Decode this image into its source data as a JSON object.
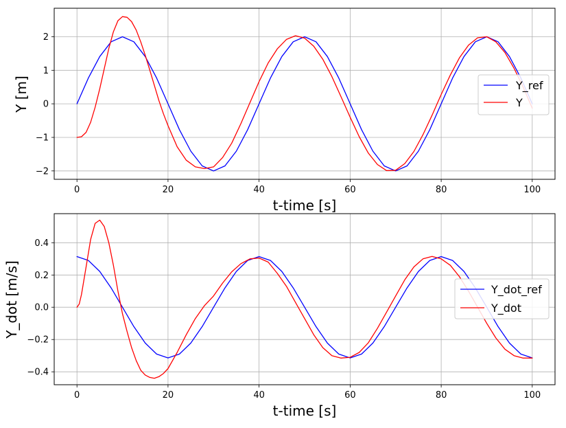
{
  "chart_data": [
    {
      "type": "line",
      "xlabel": "t-time [s]",
      "ylabel": "Y [m]",
      "xlim": [
        -5,
        105
      ],
      "ylim": [
        -2.25,
        2.85
      ],
      "xticks": [
        0,
        20,
        40,
        60,
        80,
        100
      ],
      "yticks": [
        -2,
        -1,
        0,
        1,
        2
      ],
      "grid": true,
      "legend_position": "center-right",
      "series": [
        {
          "name": "Y_ref",
          "color": "#0000ff",
          "x": [
            0,
            2.5,
            5,
            7.5,
            10,
            12.5,
            15,
            17.5,
            20,
            22.5,
            25,
            27.5,
            30,
            32.5,
            35,
            37.5,
            40,
            42.5,
            45,
            47.5,
            50,
            52.5,
            55,
            57.5,
            60,
            62.5,
            65,
            67.5,
            70,
            72.5,
            75,
            77.5,
            80,
            82.5,
            85,
            87.5,
            90,
            92.5,
            95,
            97.5,
            100
          ],
          "values": [
            0,
            0.77,
            1.41,
            1.85,
            2.0,
            1.85,
            1.41,
            0.77,
            0,
            -0.77,
            -1.41,
            -1.85,
            -2.0,
            -1.85,
            -1.41,
            -0.77,
            0,
            0.77,
            1.41,
            1.85,
            2.0,
            1.85,
            1.41,
            0.77,
            0,
            -0.77,
            -1.41,
            -1.85,
            -2.0,
            -1.85,
            -1.41,
            -0.77,
            0,
            0.77,
            1.41,
            1.85,
            2.0,
            1.85,
            1.41,
            0.77,
            0
          ]
        },
        {
          "name": "Y",
          "color": "#ff0000",
          "x": [
            0,
            1,
            2,
            3,
            4,
            5,
            6,
            7,
            8,
            9,
            10,
            11,
            12,
            13,
            14,
            15,
            16,
            17,
            18,
            19,
            20,
            22,
            24,
            26,
            28,
            30,
            32,
            34,
            36,
            38,
            40,
            42,
            44,
            46,
            48,
            50,
            52,
            54,
            56,
            58,
            60,
            62,
            64,
            66,
            68,
            70,
            72,
            74,
            76,
            78,
            80,
            82,
            84,
            86,
            88,
            90,
            92,
            94,
            96,
            98,
            100
          ],
          "values": [
            -1.0,
            -0.98,
            -0.85,
            -0.55,
            -0.1,
            0.45,
            1.05,
            1.65,
            2.15,
            2.48,
            2.6,
            2.58,
            2.45,
            2.2,
            1.85,
            1.45,
            1.0,
            0.55,
            0.1,
            -0.3,
            -0.65,
            -1.28,
            -1.68,
            -1.88,
            -1.93,
            -1.88,
            -1.6,
            -1.17,
            -0.59,
            0.04,
            0.66,
            1.22,
            1.64,
            1.92,
            2.03,
            1.96,
            1.72,
            1.33,
            0.81,
            0.21,
            -0.4,
            -0.98,
            -1.47,
            -1.81,
            -1.99,
            -1.98,
            -1.78,
            -1.42,
            -0.92,
            -0.34,
            0.28,
            0.86,
            1.37,
            1.75,
            1.97,
            2.0,
            1.85,
            1.53,
            1.06,
            0.5,
            -0.13
          ]
        }
      ]
    },
    {
      "type": "line",
      "xlabel": "t-time [s]",
      "ylabel": "Y_dot [m/s]",
      "xlim": [
        -5,
        105
      ],
      "ylim": [
        -0.48,
        0.58
      ],
      "xticks": [
        0,
        20,
        40,
        60,
        80,
        100
      ],
      "yticks": [
        -0.4,
        -0.2,
        0.0,
        0.2,
        0.4
      ],
      "ytick_labels": [
        "−0.4",
        "−0.2",
        "0.0",
        "0.2",
        "0.4"
      ],
      "grid": true,
      "legend_position": "center-right",
      "series": [
        {
          "name": "Y_dot_ref",
          "color": "#0000ff",
          "x": [
            0,
            2.5,
            5,
            7.5,
            10,
            12.5,
            15,
            17.5,
            20,
            22.5,
            25,
            27.5,
            30,
            32.5,
            35,
            37.5,
            40,
            42.5,
            45,
            47.5,
            50,
            52.5,
            55,
            57.5,
            60,
            62.5,
            65,
            67.5,
            70,
            72.5,
            75,
            77.5,
            80,
            82.5,
            85,
            87.5,
            90,
            92.5,
            95,
            97.5,
            100
          ],
          "values": [
            0.314,
            0.29,
            0.222,
            0.12,
            0,
            -0.12,
            -0.222,
            -0.29,
            -0.314,
            -0.29,
            -0.222,
            -0.12,
            0,
            0.12,
            0.222,
            0.29,
            0.314,
            0.29,
            0.222,
            0.12,
            0,
            -0.12,
            -0.222,
            -0.29,
            -0.314,
            -0.29,
            -0.222,
            -0.12,
            0,
            0.12,
            0.222,
            0.29,
            0.314,
            0.29,
            0.222,
            0.12,
            0,
            -0.12,
            -0.222,
            -0.29,
            -0.314
          ]
        },
        {
          "name": "Y_dot",
          "color": "#ff0000",
          "x": [
            0,
            0.5,
            1,
            2,
            3,
            4,
            5,
            6,
            7,
            8,
            9,
            10,
            11,
            12,
            13,
            14,
            15,
            16,
            17,
            18,
            19,
            20,
            22,
            24,
            26,
            28,
            30,
            32,
            34,
            36,
            38,
            40,
            42,
            44,
            46,
            48,
            50,
            52,
            54,
            56,
            58,
            60,
            62,
            64,
            66,
            68,
            70,
            72,
            74,
            76,
            78,
            80,
            82,
            84,
            86,
            88,
            90,
            92,
            94,
            96,
            98,
            100
          ],
          "values": [
            0.0,
            0.02,
            0.08,
            0.25,
            0.42,
            0.52,
            0.54,
            0.5,
            0.4,
            0.26,
            0.1,
            -0.04,
            -0.15,
            -0.25,
            -0.33,
            -0.39,
            -0.42,
            -0.435,
            -0.44,
            -0.43,
            -0.41,
            -0.38,
            -0.28,
            -0.17,
            -0.07,
            0.01,
            0.07,
            0.15,
            0.22,
            0.27,
            0.3,
            0.305,
            0.28,
            0.21,
            0.13,
            0.03,
            -0.07,
            -0.17,
            -0.25,
            -0.3,
            -0.315,
            -0.31,
            -0.28,
            -0.22,
            -0.13,
            -0.03,
            0.07,
            0.17,
            0.25,
            0.3,
            0.315,
            0.3,
            0.26,
            0.19,
            0.1,
            0.0,
            -0.1,
            -0.19,
            -0.26,
            -0.3,
            -0.315,
            -0.315
          ]
        }
      ]
    }
  ]
}
